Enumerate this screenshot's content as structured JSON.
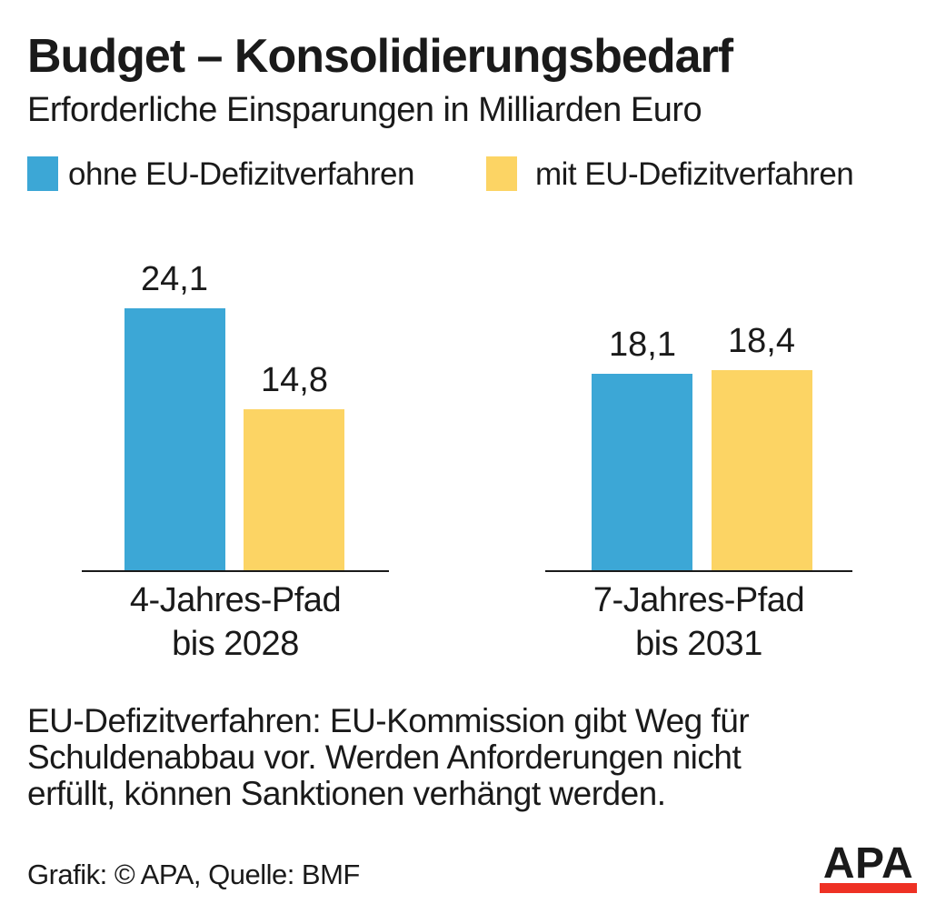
{
  "header": {
    "title": "Budget – Konsolidierungsbedarf",
    "subtitle": "Erforderliche Einsparungen in Milliarden Euro"
  },
  "chart_data": {
    "type": "bar",
    "title": "Budget – Konsolidierungsbedarf",
    "unit": "Milliarden Euro",
    "grid": false,
    "legend_position": "top",
    "categories": [
      {
        "line1": "4-Jahres-Pfad",
        "line2": "bis 2028"
      },
      {
        "line1": "7-Jahres-Pfad",
        "line2": "bis 2031"
      }
    ],
    "series": [
      {
        "name": "ohne EU-Defizitverfahren",
        "color": "#3CA7D6",
        "values": [
          24.1,
          18.1
        ],
        "value_labels": [
          "24,1",
          "18,1"
        ]
      },
      {
        "name": "mit EU-Defizitverfahren",
        "color": "#FCD464",
        "values": [
          14.8,
          18.4
        ],
        "value_labels": [
          "14,8",
          "18,4"
        ]
      }
    ]
  },
  "footnote": {
    "lines": [
      "EU-Defizitverfahren: EU-Kommission gibt Weg für",
      "Schuldenabbau vor. Werden Anforderungen nicht",
      "erfüllt, können Sanktionen verhängt werden."
    ]
  },
  "footer": {
    "credit": "Grafik: © APA, Quelle: BMF",
    "logo_text": "APA",
    "logo_bar_color": "#EE3124"
  }
}
